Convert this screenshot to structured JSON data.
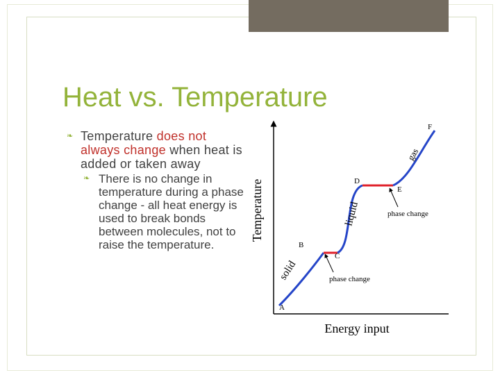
{
  "slide": {
    "title": "Heat vs. Temperature",
    "bullets": [
      {
        "parts": [
          "Temperature",
          " does not always change",
          " when heat is added or taken away"
        ],
        "sub": "There is no change in temperature during a phase change - all heat energy is used to break bonds between molecules, not to raise the temperature."
      }
    ]
  },
  "colors": {
    "accent": "#93b33a",
    "highlight": "#c0302a",
    "curve": "#2545c8",
    "phase": "#e0202a"
  },
  "icons": {
    "bullet": "scribble-bullet-icon"
  },
  "chart_data": {
    "type": "line",
    "xlabel": "Energy input",
    "ylabel": "Temperature",
    "points": [
      {
        "label": "A"
      },
      {
        "label": "B"
      },
      {
        "label": "C"
      },
      {
        "label": "D"
      },
      {
        "label": "E"
      },
      {
        "label": "F"
      }
    ],
    "phase_labels": [
      "solid",
      "liquid",
      "gas"
    ],
    "annotations": [
      "phase change",
      "phase change"
    ]
  }
}
